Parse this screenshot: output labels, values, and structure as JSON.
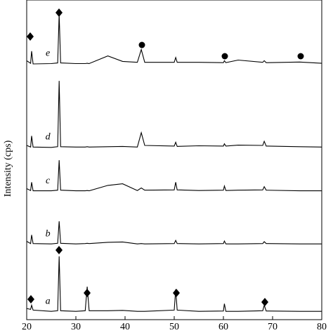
{
  "chart_data": {
    "type": "line",
    "ylabel": "Intensity (cps)",
    "x": [
      20,
      20.8,
      21,
      21.3,
      25,
      26.3,
      26.6,
      26.9,
      30,
      31.9,
      32.3,
      32.7,
      36.5,
      39.5,
      42.5,
      43.3,
      44,
      50,
      50.3,
      50.6,
      55,
      60,
      60.2,
      60.5,
      63,
      68,
      68.3,
      68.7,
      75.5,
      80
    ],
    "series": [
      {
        "name": "a",
        "color": "#000000",
        "values": [
          3.5,
          3.2,
          4.5,
          3.0,
          2.6,
          2.8,
          19.8,
          2.8,
          2.6,
          2.8,
          10.3,
          2.8,
          2.8,
          2.9,
          2.6,
          2.6,
          2.6,
          3.0,
          9.5,
          3.0,
          2.6,
          2.7,
          5.0,
          2.6,
          2.6,
          2.8,
          4.5,
          2.7,
          2.6,
          2.6
        ]
      },
      {
        "name": "b",
        "color": "#000000",
        "values": [
          24.5,
          23.8,
          26.5,
          23.8,
          23.7,
          23.9,
          30.8,
          23.9,
          23.7,
          23.8,
          23.9,
          23.8,
          24.2,
          24.3,
          23.7,
          23.8,
          23.7,
          23.8,
          24.8,
          23.8,
          23.7,
          23.8,
          24.6,
          23.7,
          23.7,
          23.8,
          24.4,
          23.8,
          23.7,
          23.7
        ]
      },
      {
        "name": "c",
        "color": "#000000",
        "values": [
          41,
          40.4,
          43,
          40.3,
          40.3,
          40.5,
          49.9,
          40.5,
          40.3,
          40.3,
          40.4,
          40.3,
          42,
          42.5,
          40.4,
          41.2,
          40.5,
          40.6,
          43,
          40.6,
          40.4,
          40.5,
          41.8,
          40.4,
          40.5,
          40.6,
          41.6,
          40.5,
          40.3,
          40.3
        ]
      },
      {
        "name": "d",
        "color": "#000000",
        "values": [
          54.5,
          54,
          57.5,
          54,
          53.9,
          54.1,
          74.7,
          54.1,
          54,
          54,
          54.1,
          54,
          54.1,
          54.2,
          54,
          58.5,
          54.5,
          54.3,
          55.5,
          54.2,
          54.4,
          54.3,
          55,
          54.3,
          54.6,
          54.5,
          55.8,
          54.3,
          54.1,
          54
        ]
      },
      {
        "name": "e",
        "color": "#000000",
        "values": [
          81,
          80.2,
          84,
          80,
          80.1,
          80.3,
          95.6,
          80.3,
          80.1,
          80.1,
          80.2,
          80.1,
          82.5,
          80.8,
          80.5,
          84.5,
          80.5,
          80.5,
          82,
          80.5,
          80.5,
          80.4,
          81,
          80.4,
          81.2,
          80.5,
          81,
          80.4,
          80.6,
          80.2
        ]
      }
    ],
    "xlim": [
      20,
      80
    ],
    "xticks": [
      20,
      30,
      40,
      50,
      60,
      70,
      80
    ],
    "ylim": [
      0,
      100
    ]
  }
}
